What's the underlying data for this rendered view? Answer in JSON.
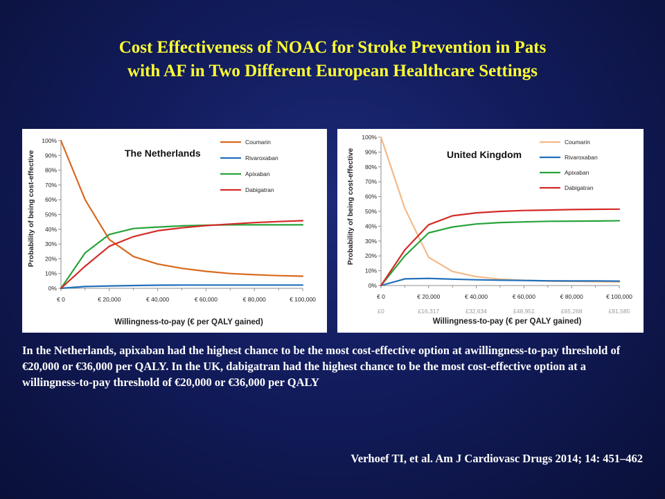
{
  "slide": {
    "title_lines": [
      "Cost Effectiveness of NOAC for Stroke Prevention in Pats",
      "with AF in Two Different European Healthcare Settings"
    ],
    "summary": " In the Netherlands, apixaban had the highest chance to be the most cost-effective option at awillingness-to-pay threshold of €20,000 or €36,000 per QALY. In the UK, dabigatran had the highest chance to be the most cost-effective option at a willingness-to-pay threshold of €20,000 or €36,000 per QALY",
    "citation": "Verhoef  TI, et al. Am J Cardiovasc Drugs 2014; 14: 451–462"
  },
  "colors": {
    "coumarin_nl": "#d9691f",
    "coumarin_uk": "#f5b886",
    "rivaroxaban": "#1f6fba",
    "apixaban": "#27a33a",
    "dabigatran": "#d42a27"
  },
  "chart_data": [
    {
      "type": "line",
      "title": "The Netherlands",
      "xlabel": "Willingness-to-pay (€ per QALY gained)",
      "ylabel": "Probability of being cost-effective",
      "x": [
        0,
        10000,
        20000,
        30000,
        40000,
        50000,
        60000,
        70000,
        80000,
        90000,
        100000
      ],
      "xlim": [
        0,
        100000
      ],
      "ylim": [
        0,
        100
      ],
      "x_tick_values": [
        0,
        20000,
        40000,
        60000,
        80000,
        100000
      ],
      "x_tick_labels": [
        "€ 0",
        "€ 20,000",
        "€ 40,000",
        "€ 60,000",
        "€ 80,000",
        "€ 100,000"
      ],
      "y_tick_values": [
        0,
        10,
        20,
        30,
        40,
        50,
        60,
        70,
        80,
        90,
        100
      ],
      "y_tick_labels": [
        "0%",
        "10%",
        "20%",
        "30%",
        "40%",
        "50%",
        "60%",
        "70%",
        "80%",
        "90%",
        "100%"
      ],
      "grid": false,
      "legend_position": "top-right",
      "series": [
        {
          "name": "Coumarin",
          "color": "#d9691f",
          "values": [
            100,
            60,
            33,
            21.5,
            16.5,
            13.5,
            11.5,
            10,
            9.2,
            8.6,
            8.2
          ]
        },
        {
          "name": "Rivaroxaban",
          "color": "#1f6fba",
          "values": [
            0,
            1.2,
            1.6,
            1.9,
            2.1,
            2.2,
            2.2,
            2.2,
            2.2,
            2.2,
            2.2
          ]
        },
        {
          "name": "Apixaban",
          "color": "#27a33a",
          "values": [
            0,
            24,
            36.5,
            40.5,
            41.5,
            42.3,
            42.7,
            43,
            43,
            43,
            43
          ]
        },
        {
          "name": "Dabigatran",
          "color": "#d42a27",
          "values": [
            0,
            15,
            28.5,
            35,
            39,
            41,
            42.5,
            43.5,
            44.5,
            45.2,
            45.8
          ]
        }
      ]
    },
    {
      "type": "line",
      "title": "United Kingdom",
      "xlabel": "Willingness-to-pay (€ per QALY gained)",
      "ylabel": "Probability of being cost-effective",
      "x": [
        0,
        10000,
        20000,
        30000,
        40000,
        50000,
        60000,
        70000,
        80000,
        90000,
        100000
      ],
      "xlim": [
        0,
        100000
      ],
      "ylim": [
        0,
        100
      ],
      "x_tick_values": [
        0,
        20000,
        40000,
        60000,
        80000,
        100000
      ],
      "x_tick_labels": [
        "€ 0",
        "€ 20,000",
        "€ 40,000",
        "€ 60,000",
        "€ 80,000",
        "€ 100,000"
      ],
      "x_secondary_tick_labels": [
        "£0",
        "£16,317",
        "£32,634",
        "£48,951",
        "£65,268",
        "£81,585"
      ],
      "y_tick_values": [
        0,
        10,
        20,
        30,
        40,
        50,
        60,
        70,
        80,
        90,
        100
      ],
      "y_tick_labels": [
        "0%",
        "10%",
        "20%",
        "30%",
        "40%",
        "50%",
        "60%",
        "70%",
        "80%",
        "90%",
        "100%"
      ],
      "grid": false,
      "legend_position": "top-right",
      "series": [
        {
          "name": "Coumarin",
          "color": "#f5b886",
          "values": [
            100,
            52,
            19,
            9.5,
            6,
            4.3,
            3.5,
            3,
            2.8,
            2.6,
            2.5
          ]
        },
        {
          "name": "Rivaroxaban",
          "color": "#1f6fba",
          "values": [
            0,
            4.5,
            4.8,
            4.3,
            3.9,
            3.6,
            3.4,
            3.2,
            3.1,
            3.1,
            3
          ]
        },
        {
          "name": "Apixaban",
          "color": "#27a33a",
          "values": [
            0,
            20,
            35.5,
            39.5,
            41.5,
            42.5,
            42.9,
            43.3,
            43.4,
            43.5,
            43.7
          ]
        },
        {
          "name": "Dabigatran",
          "color": "#d42a27",
          "values": [
            0,
            24,
            41,
            47,
            49,
            50,
            50.6,
            50.9,
            51.2,
            51.4,
            51.5
          ]
        }
      ]
    }
  ]
}
